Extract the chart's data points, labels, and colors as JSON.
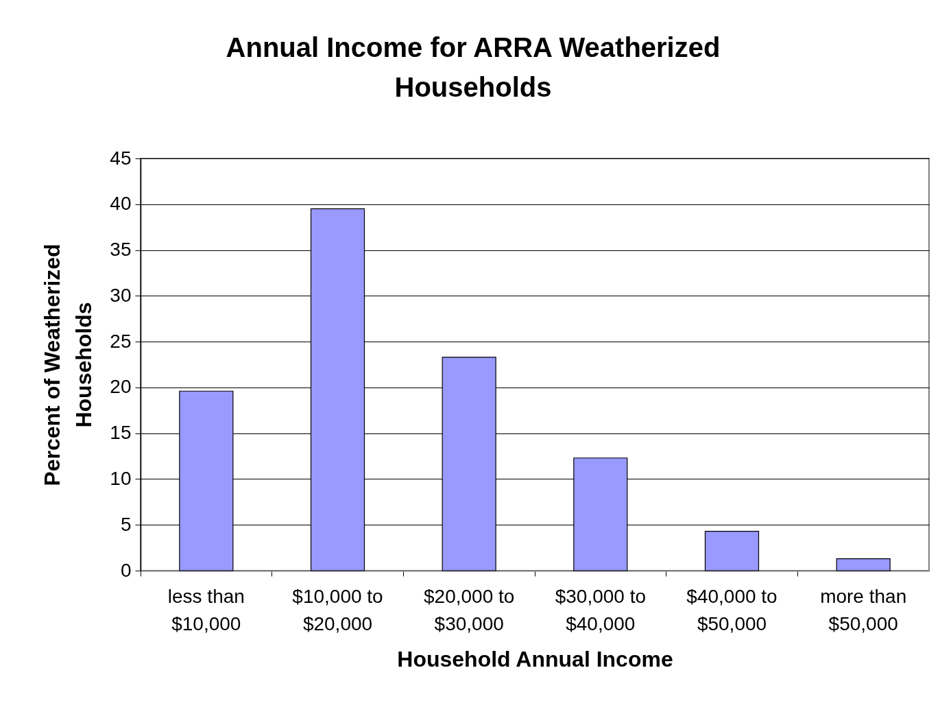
{
  "chart_data": {
    "type": "bar",
    "title": "Annual Income for ARRA Weatherized Households",
    "xlabel": "Household Annual Income",
    "ylabel": "Percent of Weatherized Households",
    "categories": [
      "less than $10,000",
      "$10,000 to $20,000",
      "$20,000 to $30,000",
      "$30,000 to $40,000",
      "$40,000 to $50,000",
      "more than $50,000"
    ],
    "values": [
      19.6,
      39.5,
      23.3,
      12.3,
      4.3,
      1.3
    ],
    "color": "#9999ff",
    "ylim": [
      0,
      45
    ],
    "yticks": [
      0,
      5,
      10,
      15,
      20,
      25,
      30,
      35,
      40,
      45
    ],
    "grid": "y"
  }
}
